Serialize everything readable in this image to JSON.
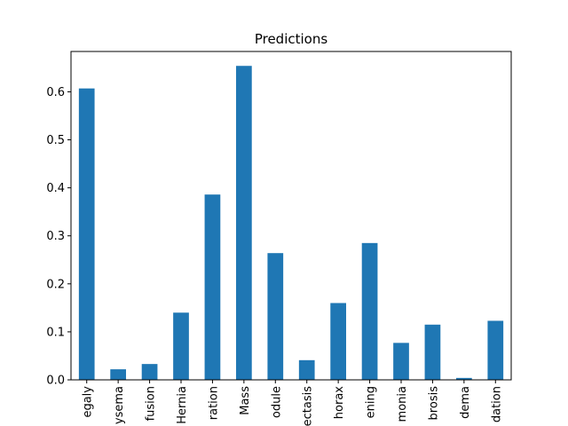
{
  "chart_data": {
    "type": "bar",
    "title": "Predictions",
    "xlabel": "",
    "ylabel": "",
    "ylim": [
      0,
      0.684
    ],
    "yticks": [
      0.0,
      0.1,
      0.2,
      0.3,
      0.4,
      0.5,
      0.6
    ],
    "ytick_labels": [
      "0.0",
      "0.1",
      "0.2",
      "0.3",
      "0.4",
      "0.5",
      "0.6"
    ],
    "bar_color": "#1f77b4",
    "grid": false,
    "legend": "none",
    "categories": [
      "egaly",
      "ysema",
      "fusion",
      "Hernia",
      "ration",
      "Mass",
      "odule",
      "ectasis",
      "horax",
      "ening",
      "monia",
      "brosis",
      "dema",
      "dation"
    ],
    "values": [
      0.607,
      0.022,
      0.033,
      0.14,
      0.386,
      0.654,
      0.264,
      0.041,
      0.16,
      0.285,
      0.077,
      0.115,
      0.004,
      0.123
    ]
  }
}
